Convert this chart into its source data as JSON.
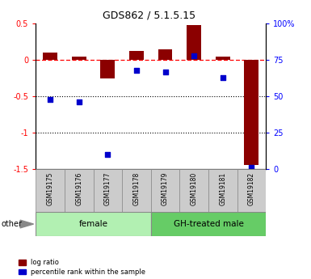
{
  "title": "GDS862 / 5.1.5.15",
  "samples": [
    "GSM19175",
    "GSM19176",
    "GSM19177",
    "GSM19178",
    "GSM19179",
    "GSM19180",
    "GSM19181",
    "GSM19182"
  ],
  "log_ratio": [
    0.1,
    0.05,
    -0.25,
    0.13,
    0.15,
    0.48,
    0.05,
    -1.45
  ],
  "percentile_rank": [
    48,
    46,
    10,
    68,
    67,
    78,
    63,
    1
  ],
  "groups": [
    {
      "label": "female",
      "start": 0,
      "end": 3,
      "color": "#b2f0b2"
    },
    {
      "label": "GH-treated male",
      "start": 4,
      "end": 7,
      "color": "#66cc66"
    }
  ],
  "ylim_left": [
    -1.5,
    0.5
  ],
  "ylim_right": [
    0,
    100
  ],
  "dotted_lines": [
    -0.5,
    -1.0
  ],
  "bar_color": "#8b0000",
  "dot_color": "#0000cc",
  "bar_width": 0.5,
  "sample_box_color": "#cccccc",
  "sample_box_edge": "#888888",
  "other_label": "other"
}
